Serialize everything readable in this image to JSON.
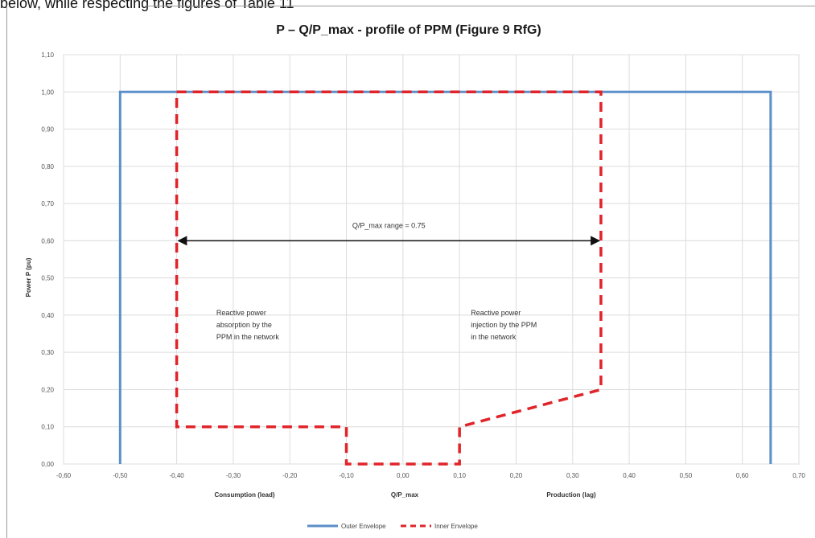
{
  "snippet": "below, while respecting the figures of Table 11",
  "chart_data": {
    "type": "line",
    "title": "P – Q/P_max - profile of PPM (Figure 9 RfG)",
    "xlabel": "Q/P_max",
    "xlabel_left": "Consumption (lead)",
    "xlabel_right": "Production (lag)",
    "ylabel": "Power  P (pu)",
    "xlim": [
      -0.6,
      0.7
    ],
    "ylim": [
      0,
      1.1
    ],
    "x_ticks": [
      "-0,60",
      "-0,50",
      "-0,40",
      "-0,30",
      "-0,20",
      "-0,10",
      "0,00",
      "0,10",
      "0,20",
      "0,30",
      "0,40",
      "0,50",
      "0,60",
      "0,70"
    ],
    "x_tick_values": [
      -0.6,
      -0.5,
      -0.4,
      -0.3,
      -0.2,
      -0.1,
      0,
      0.1,
      0.2,
      0.3,
      0.4,
      0.5,
      0.6,
      0.7
    ],
    "y_ticks": [
      "0,00",
      "0,10",
      "0,20",
      "0,30",
      "0,40",
      "0,50",
      "0,60",
      "0,70",
      "0,80",
      "0,90",
      "1,00",
      "1,10"
    ],
    "y_tick_values": [
      0,
      0.1,
      0.2,
      0.3,
      0.4,
      0.5,
      0.6,
      0.7,
      0.8,
      0.9,
      1.0,
      1.1
    ],
    "grid": true,
    "legend_position": "bottom",
    "series": [
      {
        "name": "Outer Envelope",
        "color": "#5b8fc9",
        "style": "solid",
        "x": [
          -0.5,
          -0.5,
          0.65,
          0.65
        ],
        "y": [
          0,
          1.0,
          1.0,
          0
        ]
      },
      {
        "name": "Inner Envelope",
        "color": "#e0242a",
        "style": "dashed",
        "x": [
          -0.4,
          -0.4,
          -0.4,
          -0.1,
          -0.1,
          0.1,
          0.1,
          0.35,
          0.35,
          0.35
        ],
        "y": [
          0,
          0.1,
          1.0,
          0.1,
          0,
          0,
          0.1,
          0.2,
          1.0,
          1.0
        ],
        "path": [
          [
            -0.4,
            1.0
          ],
          [
            0.35,
            1.0
          ],
          [
            0.35,
            0.2
          ],
          [
            0.1,
            0.1
          ],
          [
            0.1,
            0
          ],
          [
            -0.1,
            0
          ],
          [
            -0.1,
            0.1
          ],
          [
            -0.4,
            0.1
          ],
          [
            -0.4,
            1.0
          ]
        ]
      }
    ],
    "range_arrow": {
      "label": "Q/P_max range = 0.75",
      "x_from": -0.4,
      "x_to": 0.35,
      "y": 0.6
    },
    "annotations": [
      {
        "id": "left",
        "lines": [
          "Reactive power",
          "absorption by the",
          "PPM in the network"
        ],
        "x": -0.33,
        "y": 0.4
      },
      {
        "id": "right",
        "lines": [
          "Reactive power",
          "injection by the PPM",
          "in the network"
        ],
        "x": 0.12,
        "y": 0.4
      }
    ]
  }
}
